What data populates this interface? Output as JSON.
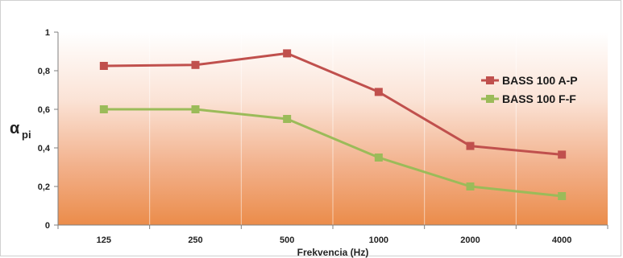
{
  "chart_data": {
    "type": "line",
    "categories": [
      "125",
      "250",
      "500",
      "1000",
      "2000",
      "4000"
    ],
    "series": [
      {
        "name": "BASS 100 A-P",
        "color": "#c0504d",
        "marker": "square",
        "values": [
          0.825,
          0.83,
          0.89,
          0.69,
          0.41,
          0.365
        ]
      },
      {
        "name": "BASS 100 F-F",
        "color": "#9bbb59",
        "marker": "square",
        "values": [
          0.6,
          0.6,
          0.55,
          0.35,
          0.2,
          0.15
        ]
      }
    ],
    "xlabel": "Frekvencia (Hz)",
    "ylabel_main": "α",
    "ylabel_sub": "pi",
    "ylim": [
      0,
      1
    ],
    "yticks": [
      "0",
      "0,2",
      "0,4",
      "0,6",
      "0,8",
      "1"
    ],
    "grid": true,
    "legend_position": "right",
    "background_gradient": {
      "top": "#ffffff",
      "bottom": "#eb8c4a"
    }
  }
}
